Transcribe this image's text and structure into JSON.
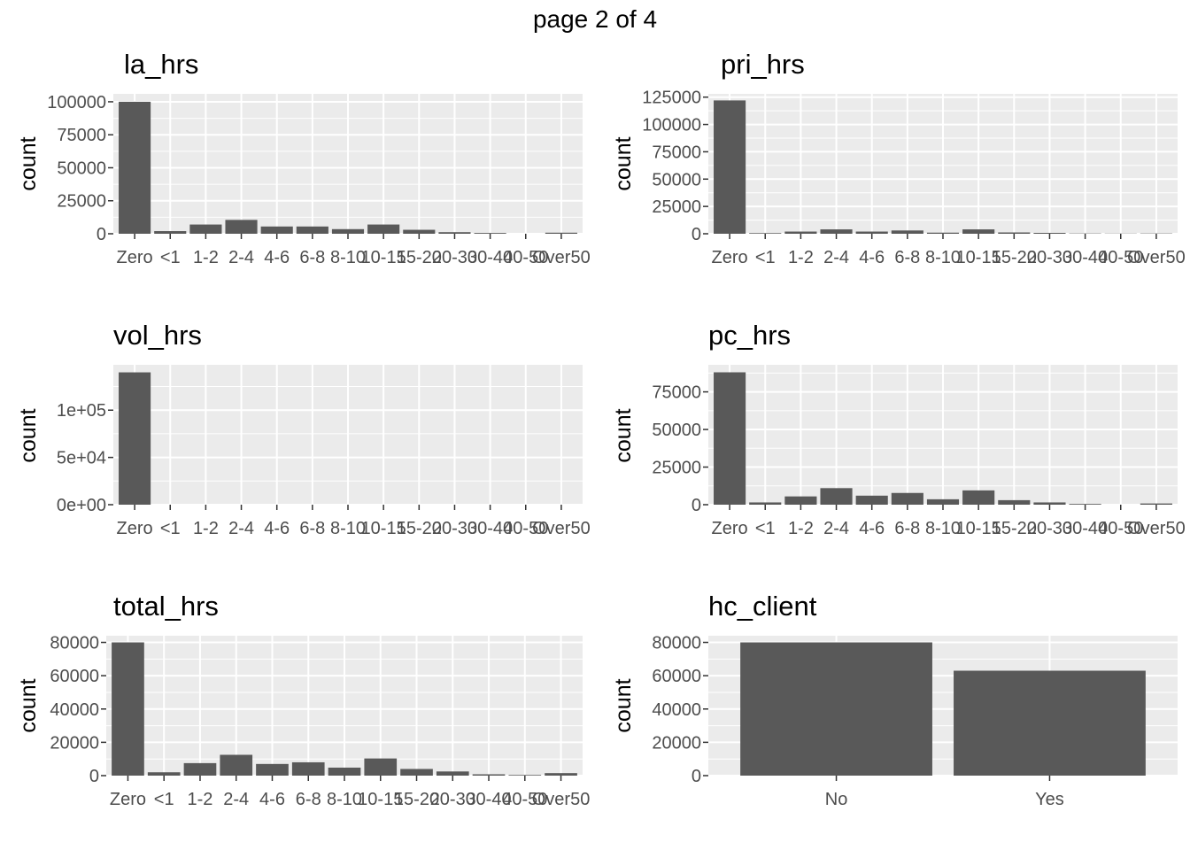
{
  "page_title": "page 2 of 4",
  "chart_data": [
    {
      "type": "bar",
      "title": "la_hrs",
      "xlabel": "",
      "ylabel": "count",
      "categories": [
        "Zero",
        "<1",
        "1-2",
        "2-4",
        "4-6",
        "6-8",
        "8-10",
        "10-15",
        "15-20",
        "20-30",
        "30-40",
        "40-50",
        "Over50"
      ],
      "values": [
        100000,
        2000,
        7000,
        10500,
        5500,
        5500,
        3500,
        7000,
        3000,
        1200,
        600,
        0,
        800
      ],
      "ylim": [
        0,
        106000
      ],
      "yticks": [
        0,
        25000,
        50000,
        75000,
        100000
      ],
      "ytick_labels": [
        "0",
        "25000",
        "50000",
        "75000",
        "100000"
      ],
      "grid": true
    },
    {
      "type": "bar",
      "title": "pri_hrs",
      "xlabel": "",
      "ylabel": "count",
      "categories": [
        "Zero",
        "<1",
        "1-2",
        "2-4",
        "4-6",
        "6-8",
        "8-10",
        "10-15",
        "15-20",
        "20-30",
        "30-40",
        "40-50",
        "Over50"
      ],
      "values": [
        122000,
        600,
        2000,
        4000,
        2000,
        3000,
        1000,
        4000,
        1200,
        800,
        300,
        200,
        300
      ],
      "ylim": [
        0,
        128000
      ],
      "yticks": [
        0,
        25000,
        50000,
        75000,
        100000,
        125000
      ],
      "ytick_labels": [
        "0",
        "25000",
        "50000",
        "75000",
        "100000",
        "125000"
      ],
      "grid": true
    },
    {
      "type": "bar",
      "title": "vol_hrs",
      "xlabel": "",
      "ylabel": "count",
      "categories": [
        "Zero",
        "<1",
        "1-2",
        "2-4",
        "4-6",
        "6-8",
        "8-10",
        "10-15",
        "15-20",
        "20-30",
        "30-40",
        "40-50",
        "Over50"
      ],
      "values": [
        140000,
        0,
        0,
        0,
        0,
        0,
        0,
        0,
        0,
        0,
        0,
        0,
        0
      ],
      "ylim": [
        0,
        148000
      ],
      "yticks": [
        0,
        50000,
        100000
      ],
      "ytick_labels": [
        "0e+00",
        "5e+04",
        "1e+05"
      ],
      "grid": true
    },
    {
      "type": "bar",
      "title": "pc_hrs",
      "xlabel": "",
      "ylabel": "count",
      "categories": [
        "Zero",
        "<1",
        "1-2",
        "2-4",
        "4-6",
        "6-8",
        "8-10",
        "10-15",
        "15-20",
        "20-30",
        "30-40",
        "40-50",
        "Over50"
      ],
      "values": [
        88000,
        1500,
        5500,
        11000,
        6000,
        7800,
        3600,
        9500,
        3000,
        1500,
        500,
        0,
        800
      ],
      "ylim": [
        0,
        93000
      ],
      "yticks": [
        0,
        25000,
        50000,
        75000
      ],
      "ytick_labels": [
        "0",
        "25000",
        "50000",
        "75000"
      ],
      "grid": true
    },
    {
      "type": "bar",
      "title": "total_hrs",
      "xlabel": "",
      "ylabel": "count",
      "categories": [
        "Zero",
        "<1",
        "1-2",
        "2-4",
        "4-6",
        "6-8",
        "8-10",
        "10-15",
        "15-20",
        "20-30",
        "30-40",
        "40-50",
        "Over50"
      ],
      "values": [
        80000,
        2000,
        7500,
        12500,
        7000,
        8000,
        4800,
        10300,
        4000,
        2500,
        800,
        400,
        1500
      ],
      "ylim": [
        0,
        84000
      ],
      "yticks": [
        0,
        20000,
        40000,
        60000,
        80000
      ],
      "ytick_labels": [
        "0",
        "20000",
        "40000",
        "60000",
        "80000"
      ],
      "grid": true
    },
    {
      "type": "bar",
      "title": "hc_client",
      "xlabel": "",
      "ylabel": "count",
      "categories": [
        "No",
        "Yes"
      ],
      "values": [
        80000,
        63000
      ],
      "ylim": [
        0,
        84000
      ],
      "yticks": [
        0,
        20000,
        40000,
        60000,
        80000
      ],
      "ytick_labels": [
        "0",
        "20000",
        "40000",
        "60000",
        "80000"
      ],
      "grid": true
    }
  ],
  "colors": {
    "panel_bg": "#ebebeb",
    "grid": "#ffffff",
    "bar": "#595959",
    "tick_text": "#4d4d4d",
    "tick_mark": "#333333",
    "title_text": "#000000"
  }
}
